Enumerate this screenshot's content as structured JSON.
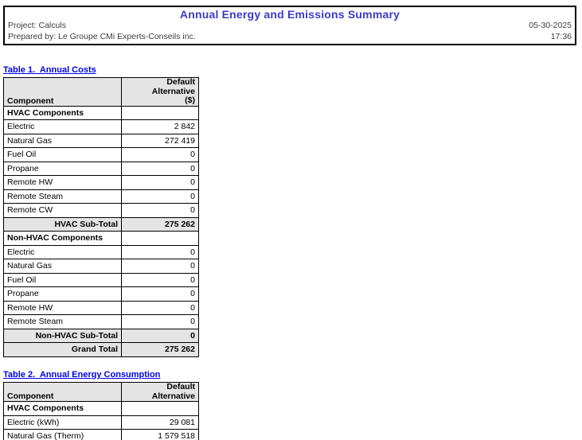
{
  "header": {
    "title": "Annual Energy and Emissions Summary",
    "project": "Project: Calculs",
    "prepared_by": "Prepared by: Le Groupe CMi Experts-Conseils inc.",
    "date": "05-30-2025",
    "time": "17:36"
  },
  "colors": {
    "main_title": "#3B3BC8",
    "table_title_link": "#0000EE",
    "header_cell_bg": "#E4E4E4",
    "border": "#000000"
  },
  "table1": {
    "title": "Table 1.  Annual Costs",
    "columns": {
      "component": "Component",
      "value_lines": [
        "Default",
        "Alternative",
        "($)"
      ]
    },
    "rows": [
      {
        "label": "HVAC Components",
        "value": "",
        "type": "section"
      },
      {
        "label": "Electric",
        "value": "2 842",
        "type": "data"
      },
      {
        "label": "Natural Gas",
        "value": "272 419",
        "type": "data"
      },
      {
        "label": "Fuel Oil",
        "value": "0",
        "type": "data"
      },
      {
        "label": "Propane",
        "value": "0",
        "type": "data"
      },
      {
        "label": "Remote HW",
        "value": "0",
        "type": "data"
      },
      {
        "label": "Remote Steam",
        "value": "0",
        "type": "data"
      },
      {
        "label": "Remote CW",
        "value": "0",
        "type": "data"
      },
      {
        "label": "HVAC Sub-Total",
        "value": "275 262",
        "type": "subtotal"
      },
      {
        "label": "Non-HVAC Components",
        "value": "",
        "type": "section"
      },
      {
        "label": "Electric",
        "value": "0",
        "type": "data"
      },
      {
        "label": "Natural Gas",
        "value": "0",
        "type": "data"
      },
      {
        "label": "Fuel Oil",
        "value": "0",
        "type": "data"
      },
      {
        "label": "Propane",
        "value": "0",
        "type": "data"
      },
      {
        "label": "Remote HW",
        "value": "0",
        "type": "data"
      },
      {
        "label": "Remote Steam",
        "value": "0",
        "type": "data"
      },
      {
        "label": "Non-HVAC Sub-Total",
        "value": "0",
        "type": "subtotal"
      },
      {
        "label": "Grand Total",
        "value": "275 262",
        "type": "subtotal"
      }
    ]
  },
  "table2": {
    "title": "Table 2.  Annual Energy Consumption",
    "columns": {
      "component": "Component",
      "value_lines": [
        "Default",
        "Alternative"
      ]
    },
    "rows": [
      {
        "label": "HVAC Components",
        "value": "",
        "type": "section"
      },
      {
        "label": "Electric (kWh)",
        "value": "29 081",
        "type": "data"
      },
      {
        "label": "Natural Gas (Therm)",
        "value": "1 579 518",
        "type": "data"
      }
    ]
  }
}
